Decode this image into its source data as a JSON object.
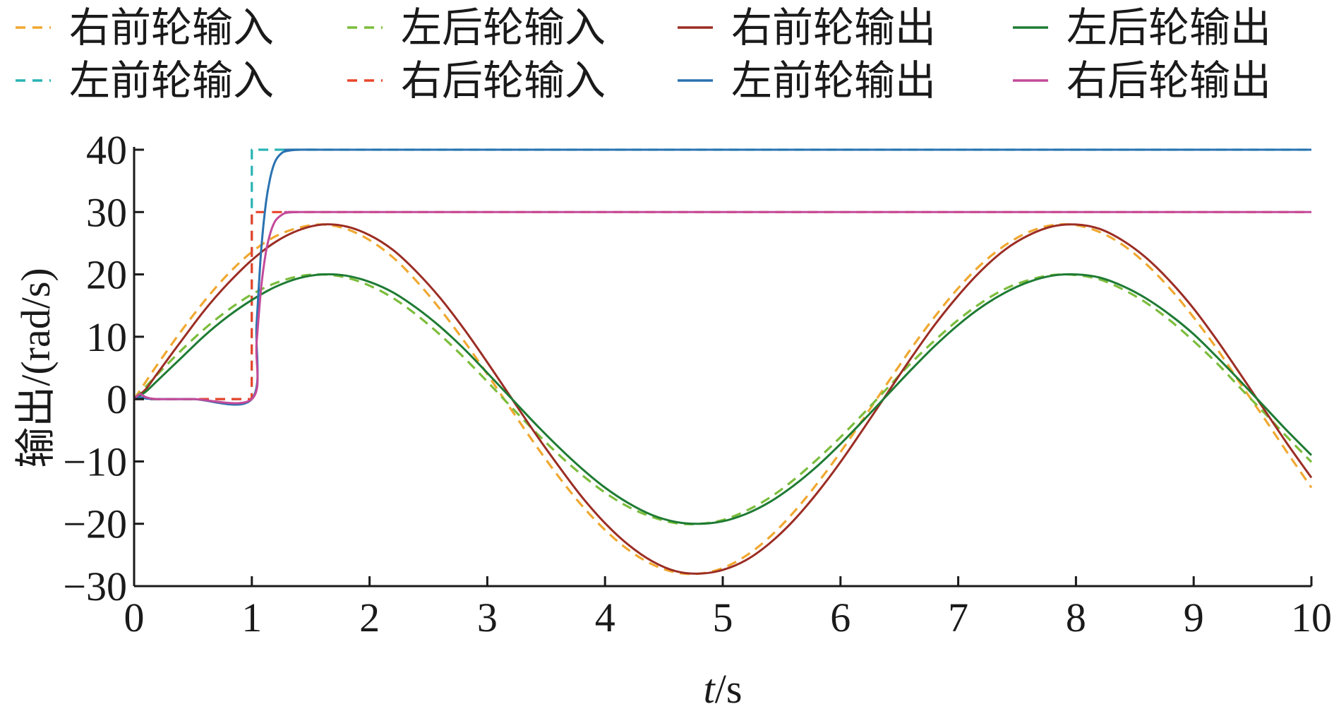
{
  "chart_data": {
    "type": "line",
    "title": "",
    "xlabel": "t/s",
    "xlabel_var": "t",
    "xlabel_unit": "/s",
    "ylabel": "输出/(rad/s)",
    "xlim": [
      0,
      10
    ],
    "ylim": [
      -30,
      40
    ],
    "xticks": [
      0,
      1,
      2,
      3,
      4,
      5,
      6,
      7,
      8,
      9,
      10
    ],
    "yticks": [
      -30,
      -20,
      -10,
      0,
      10,
      20,
      30,
      40
    ],
    "xtick_labels": [
      "0",
      "1",
      "2",
      "3",
      "4",
      "5",
      "6",
      "7",
      "8",
      "9",
      "10"
    ],
    "ytick_labels": [
      "−30",
      "−20",
      "−10",
      "0",
      "10",
      "20",
      "30",
      "40"
    ],
    "grid": false,
    "legend_position": "top",
    "series": [
      {
        "name": "右前轮输入",
        "color": "#f0a830",
        "dash": true,
        "x": [
          0,
          0.1,
          0.2,
          0.4,
          0.6,
          0.8,
          1.0,
          1.2,
          1.4,
          1.6,
          1.8,
          2.0,
          2.2,
          2.4,
          2.6,
          2.8,
          3.0,
          3.2,
          3.4,
          3.6,
          3.8,
          4.0,
          4.2,
          4.4,
          4.6,
          4.8,
          5.0,
          5.2,
          5.4,
          5.6,
          5.8,
          6.0,
          6.2,
          6.4,
          6.6,
          6.8,
          7.0,
          7.2,
          7.4,
          7.6,
          7.8,
          8.0,
          8.2,
          8.4,
          8.6,
          8.8,
          9.0,
          9.2,
          9.4,
          9.6,
          9.8,
          10.0
        ],
        "y": [
          0,
          2.8,
          5.6,
          10.9,
          15.8,
          20.1,
          23.6,
          26.1,
          27.5,
          28.0,
          27.3,
          25.5,
          22.7,
          18.9,
          14.4,
          9.4,
          4.0,
          -1.6,
          -7.1,
          -12.3,
          -17.0,
          -21.0,
          -24.2,
          -26.5,
          -27.8,
          -28.0,
          -27.1,
          -25.1,
          -22.1,
          -18.2,
          -13.6,
          -8.5,
          -3.0,
          2.6,
          8.1,
          13.2,
          17.8,
          21.7,
          24.7,
          26.8,
          27.9,
          27.9,
          26.8,
          24.7,
          21.6,
          17.7,
          13.1,
          8.0,
          2.4,
          -3.1,
          -8.7,
          -14.2
        ]
      },
      {
        "name": "左后轮输入",
        "color": "#7cbd3c",
        "dash": true,
        "x": [
          0,
          0.1,
          0.2,
          0.4,
          0.6,
          0.8,
          1.0,
          1.2,
          1.4,
          1.6,
          1.8,
          2.0,
          2.2,
          2.4,
          2.6,
          2.8,
          3.0,
          3.2,
          3.4,
          3.6,
          3.8,
          4.0,
          4.2,
          4.4,
          4.6,
          4.8,
          5.0,
          5.2,
          5.4,
          5.6,
          5.8,
          6.0,
          6.2,
          6.4,
          6.6,
          6.8,
          7.0,
          7.2,
          7.4,
          7.6,
          7.8,
          8.0,
          8.2,
          8.4,
          8.6,
          8.8,
          9.0,
          9.2,
          9.4,
          9.6,
          9.8,
          10.0
        ],
        "y": [
          0,
          2.0,
          4.0,
          7.8,
          11.3,
          14.3,
          16.8,
          18.6,
          19.7,
          20.0,
          19.5,
          18.2,
          16.2,
          13.5,
          10.3,
          6.7,
          2.8,
          -1.2,
          -5.1,
          -8.8,
          -12.1,
          -15.0,
          -17.3,
          -18.9,
          -19.9,
          -20.0,
          -19.4,
          -17.9,
          -15.8,
          -13.0,
          -9.7,
          -6.1,
          -2.2,
          1.8,
          5.8,
          9.4,
          12.7,
          15.5,
          17.7,
          19.1,
          19.9,
          19.9,
          19.2,
          17.6,
          15.4,
          12.6,
          9.3,
          5.7,
          1.7,
          -2.2,
          -6.2,
          -10.1
        ]
      },
      {
        "name": "右前轮输出",
        "color": "#9b2d24",
        "dash": false,
        "x": [
          0,
          0.1,
          0.2,
          0.4,
          0.6,
          0.8,
          1.0,
          1.2,
          1.4,
          1.6,
          1.8,
          2.0,
          2.2,
          2.4,
          2.6,
          2.8,
          3.0,
          3.2,
          3.4,
          3.6,
          3.8,
          4.0,
          4.2,
          4.4,
          4.6,
          4.8,
          5.0,
          5.2,
          5.4,
          5.6,
          5.8,
          6.0,
          6.2,
          6.4,
          6.6,
          6.8,
          7.0,
          7.2,
          7.4,
          7.6,
          7.8,
          8.0,
          8.2,
          8.4,
          8.6,
          8.8,
          9.0,
          9.2,
          9.4,
          9.6,
          9.8,
          10.0
        ],
        "y": [
          0,
          1.6,
          4.2,
          9.3,
          14.3,
          18.6,
          22.3,
          25.2,
          27.1,
          28.0,
          27.7,
          26.3,
          23.9,
          20.4,
          16.2,
          11.3,
          5.9,
          0.3,
          -5.3,
          -10.6,
          -15.6,
          -19.9,
          -23.4,
          -26.0,
          -27.6,
          -28.0,
          -27.4,
          -25.8,
          -23.1,
          -19.5,
          -15.1,
          -10.1,
          -4.6,
          1.0,
          6.6,
          11.9,
          16.6,
          20.7,
          24.0,
          26.3,
          27.7,
          28.0,
          27.3,
          25.4,
          22.6,
          18.9,
          14.5,
          9.4,
          3.9,
          -1.7,
          -7.3,
          -12.6
        ]
      },
      {
        "name": "左后轮输出",
        "color": "#1e7b34",
        "dash": false,
        "x": [
          0,
          0.1,
          0.2,
          0.4,
          0.6,
          0.8,
          1.0,
          1.2,
          1.4,
          1.6,
          1.8,
          2.0,
          2.2,
          2.4,
          2.6,
          2.8,
          3.0,
          3.2,
          3.4,
          3.6,
          3.8,
          4.0,
          4.2,
          4.4,
          4.6,
          4.8,
          5.0,
          5.2,
          5.4,
          5.6,
          5.8,
          6.0,
          6.2,
          6.4,
          6.6,
          6.8,
          7.0,
          7.2,
          7.4,
          7.6,
          7.8,
          8.0,
          8.2,
          8.4,
          8.6,
          8.8,
          9.0,
          9.2,
          9.4,
          9.6,
          9.8,
          10.0
        ],
        "y": [
          0,
          1.2,
          3.0,
          6.6,
          10.2,
          13.3,
          15.9,
          18.0,
          19.4,
          20.0,
          19.8,
          18.8,
          17.1,
          14.6,
          11.6,
          8.1,
          4.2,
          0.2,
          -3.8,
          -7.6,
          -11.1,
          -14.2,
          -16.7,
          -18.6,
          -19.7,
          -20.0,
          -19.6,
          -18.4,
          -16.5,
          -13.9,
          -10.8,
          -7.2,
          -3.3,
          0.7,
          4.7,
          8.5,
          11.9,
          14.8,
          17.1,
          18.8,
          19.8,
          20.0,
          19.5,
          18.1,
          16.1,
          13.5,
          10.4,
          6.7,
          2.8,
          -1.2,
          -5.2,
          -9.0
        ]
      },
      {
        "name": "左前轮输入",
        "color": "#29b3b3",
        "dash": true,
        "x": [
          0,
          0.999,
          1.0,
          10.0
        ],
        "y": [
          0,
          0,
          40,
          40
        ]
      },
      {
        "name": "右后轮输入",
        "color": "#e8452c",
        "dash": true,
        "x": [
          0,
          0.999,
          1.0,
          10.0
        ],
        "y": [
          0,
          0,
          30,
          30
        ]
      },
      {
        "name": "左前轮输出",
        "color": "#2a72b0",
        "dash": false,
        "x": [
          0,
          0.05,
          0.1,
          0.2,
          0.5,
          1.0,
          1.04,
          1.08,
          1.12,
          1.16,
          1.2,
          1.25,
          1.3,
          1.4,
          1.6,
          2.0,
          10.0
        ],
        "y": [
          0,
          0.3,
          0.1,
          0,
          0,
          0,
          12,
          24,
          31.5,
          35.8,
          38.2,
          39.4,
          39.8,
          40,
          40,
          40,
          40
        ]
      },
      {
        "name": "右后轮输出",
        "color": "#c34a9a",
        "dash": false,
        "x": [
          0,
          0.05,
          0.1,
          0.2,
          0.5,
          1.0,
          1.04,
          1.08,
          1.12,
          1.16,
          1.2,
          1.25,
          1.3,
          1.4,
          1.6,
          2.0,
          10.0
        ],
        "y": [
          0,
          0.8,
          0.3,
          0,
          0,
          0,
          9,
          18,
          23.6,
          26.8,
          28.6,
          29.5,
          29.9,
          30,
          30,
          30,
          30
        ]
      }
    ]
  }
}
